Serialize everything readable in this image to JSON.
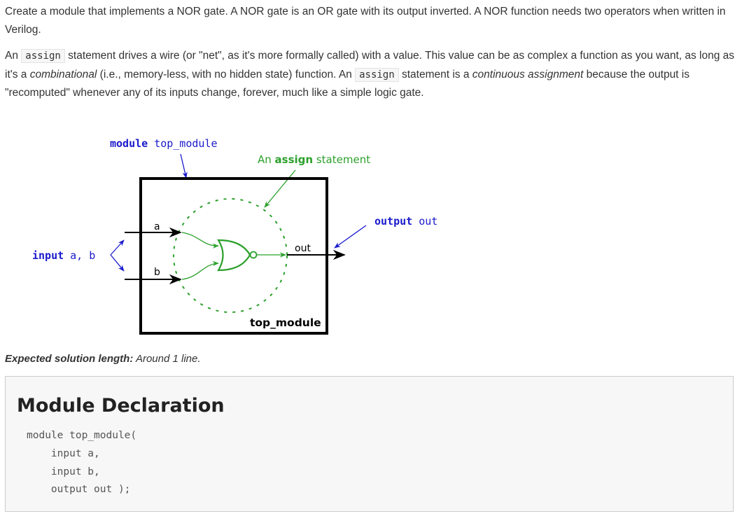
{
  "intro": {
    "p1": "Create a module that implements a NOR gate. A NOR gate is an OR gate with its output inverted. A NOR function needs two operators when written in Verilog.",
    "p2_a": "An ",
    "p2_code1": "assign",
    "p2_b": " statement drives a wire (or \"net\", as it's more formally called) with a value. This value can be as complex a function as you want, as long as it's a ",
    "p2_em1": "combinational",
    "p2_c": " (i.e., memory-less, with no hidden state) function. An ",
    "p2_code2": "assign",
    "p2_d": " statement is a ",
    "p2_em2": "continuous assignment",
    "p2_e": " because the output is \"recomputed\" whenever any of its inputs change, forever, much like a simple logic gate."
  },
  "diagram": {
    "module_kw": "module",
    "module_name": "top_module",
    "assign_pre": "An ",
    "assign_kw": "assign",
    "assign_post": " statement",
    "input_kw": "input",
    "input_names": "a, b",
    "output_kw": "output",
    "output_name": "out",
    "wire_a": "a",
    "wire_b": "b",
    "wire_out": "out",
    "box_label": "top_module",
    "colors": {
      "blue": "#1a1acc",
      "green": "#2ca02c",
      "black": "#000000"
    }
  },
  "solution": {
    "label": "Expected solution length:",
    "value": " Around 1 line."
  },
  "declaration": {
    "title": "Module Declaration",
    "code": "module top_module(\n    input a,\n    input b,\n    output out );"
  }
}
